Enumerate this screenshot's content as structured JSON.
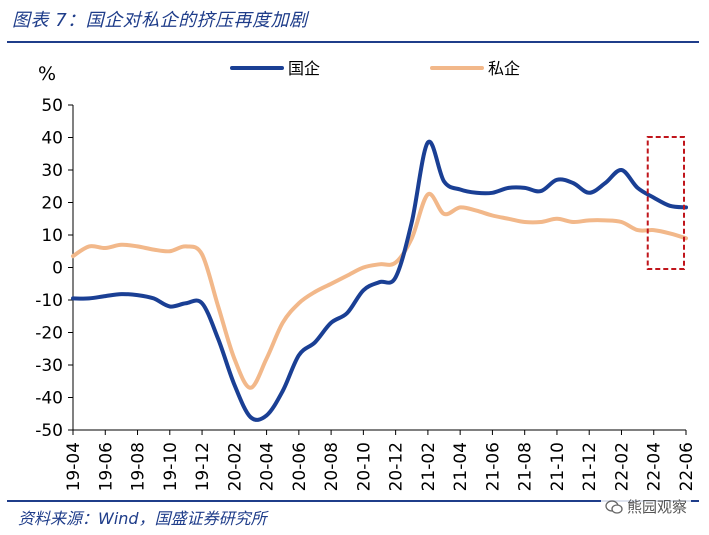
{
  "header": {
    "title": "图表 7：国企对私企的挤压再度加剧"
  },
  "footer": {
    "source": "资料来源：Wind，国盛证券研究所"
  },
  "watermark": {
    "text": "熊园观察",
    "icon": "wechat-icon"
  },
  "chart_data": {
    "type": "line",
    "ylabel": "%",
    "ylim": [
      -50,
      50
    ],
    "yticks": [
      50,
      40,
      30,
      20,
      10,
      0,
      -10,
      -20,
      -30,
      -40,
      -50
    ],
    "x_tick_labels": [
      "19-04",
      "19-06",
      "19-08",
      "19-10",
      "19-12",
      "20-02",
      "20-04",
      "20-06",
      "20-08",
      "20-10",
      "20-12",
      "21-02",
      "21-04",
      "21-06",
      "21-08",
      "21-10",
      "21-12",
      "22-02",
      "22-04",
      "22-06"
    ],
    "grid": false,
    "legend_position": "top",
    "highlight": {
      "from": "22-04",
      "to": "22-06",
      "style": "dashed red box"
    },
    "series": [
      {
        "name": "国企",
        "color": "#1a3f94",
        "points": [
          [
            "19-04",
            -9.5
          ],
          [
            "19-05",
            -9.5
          ],
          [
            "19-06",
            -8.8
          ],
          [
            "19-07",
            -8.2
          ],
          [
            "19-08",
            -8.5
          ],
          [
            "19-09",
            -9.5
          ],
          [
            "19-10",
            -12.0
          ],
          [
            "19-11",
            -11.0
          ],
          [
            "19-12",
            -11.0
          ],
          [
            "20-01",
            -22.0
          ],
          [
            "20-02",
            -36.0
          ],
          [
            "20-03",
            -46.0
          ],
          [
            "20-04",
            -45.5
          ],
          [
            "20-05",
            -38.0
          ],
          [
            "20-06",
            -27.0
          ],
          [
            "20-07",
            -23.0
          ],
          [
            "20-08",
            -17.0
          ],
          [
            "20-09",
            -14.0
          ],
          [
            "20-10",
            -7.0
          ],
          [
            "20-11",
            -4.5
          ],
          [
            "20-12",
            -3.0
          ],
          [
            "21-01",
            14.0
          ],
          [
            "21-02",
            38.5
          ],
          [
            "21-03",
            26.5
          ],
          [
            "21-04",
            24.0
          ],
          [
            "21-05",
            23.0
          ],
          [
            "21-06",
            23.0
          ],
          [
            "21-07",
            24.5
          ],
          [
            "21-08",
            24.5
          ],
          [
            "21-09",
            23.5
          ],
          [
            "21-10",
            27.0
          ],
          [
            "21-11",
            26.0
          ],
          [
            "21-12",
            23.0
          ],
          [
            "22-01",
            26.0
          ],
          [
            "22-02",
            30.0
          ],
          [
            "22-03",
            24.5
          ],
          [
            "22-04",
            21.5
          ],
          [
            "22-05",
            19.0
          ],
          [
            "22-06",
            18.5
          ]
        ]
      },
      {
        "name": "私企",
        "color": "#f2b88a",
        "points": [
          [
            "19-04",
            3.5
          ],
          [
            "19-05",
            6.5
          ],
          [
            "19-06",
            6.0
          ],
          [
            "19-07",
            7.0
          ],
          [
            "19-08",
            6.5
          ],
          [
            "19-09",
            5.5
          ],
          [
            "19-10",
            5.0
          ],
          [
            "19-11",
            6.5
          ],
          [
            "19-12",
            4.0
          ],
          [
            "20-01",
            -12.0
          ],
          [
            "20-02",
            -28.0
          ],
          [
            "20-03",
            -37.0
          ],
          [
            "20-04",
            -28.0
          ],
          [
            "20-05",
            -17.0
          ],
          [
            "20-06",
            -11.0
          ],
          [
            "20-07",
            -7.5
          ],
          [
            "20-08",
            -5.0
          ],
          [
            "20-09",
            -2.5
          ],
          [
            "20-10",
            0.0
          ],
          [
            "20-11",
            1.0
          ],
          [
            "20-12",
            1.5
          ],
          [
            "21-01",
            9.0
          ],
          [
            "21-02",
            22.5
          ],
          [
            "21-03",
            16.5
          ],
          [
            "21-04",
            18.5
          ],
          [
            "21-05",
            17.5
          ],
          [
            "21-06",
            16.0
          ],
          [
            "21-07",
            15.0
          ],
          [
            "21-08",
            14.0
          ],
          [
            "21-09",
            14.0
          ],
          [
            "21-10",
            15.0
          ],
          [
            "21-11",
            14.0
          ],
          [
            "21-12",
            14.5
          ],
          [
            "22-01",
            14.5
          ],
          [
            "22-02",
            14.0
          ],
          [
            "22-03",
            11.5
          ],
          [
            "22-04",
            11.5
          ],
          [
            "22-05",
            10.5
          ],
          [
            "22-06",
            9.0
          ]
        ]
      }
    ]
  }
}
